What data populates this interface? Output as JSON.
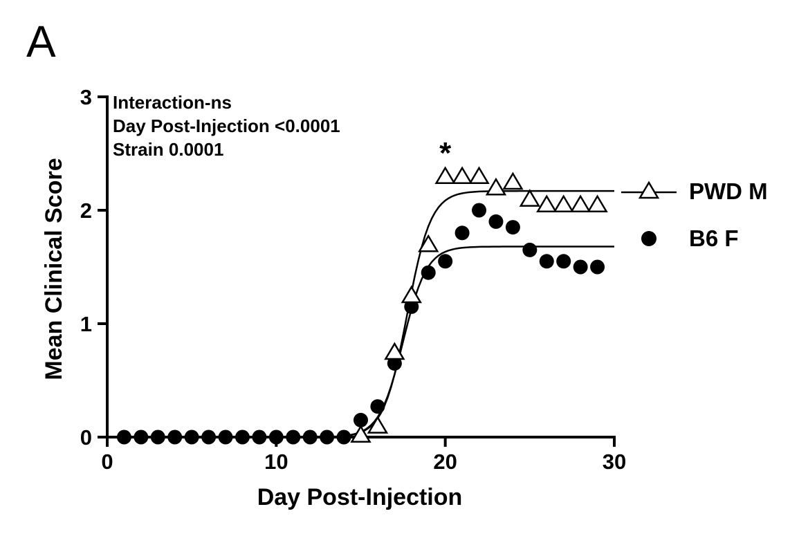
{
  "panel_label": "A",
  "stats": {
    "line1": "Interaction-ns",
    "line2": "Day Post-Injection <0.0001",
    "line3": "Strain 0.0001"
  },
  "legend": {
    "entries": [
      {
        "label": "PWD M",
        "marker": "open-triangle"
      },
      {
        "label": "B6 F",
        "marker": "filled-circle"
      }
    ],
    "position": "right"
  },
  "colors": {
    "foreground": "#000000",
    "background": "#ffffff"
  },
  "chart_data": {
    "type": "scatter",
    "title": "",
    "xlabel": "Day Post-Injection",
    "ylabel": "Mean Clinical Score",
    "xlim": [
      0,
      30
    ],
    "ylim": [
      0,
      3
    ],
    "xticks": [
      0,
      10,
      20,
      30
    ],
    "yticks": [
      0,
      1,
      2,
      3
    ],
    "grid": false,
    "legend_position": "right",
    "series": [
      {
        "name": "B6 F",
        "marker": "filled-circle",
        "x": [
          1,
          2,
          3,
          4,
          5,
          6,
          7,
          8,
          9,
          10,
          11,
          12,
          13,
          14,
          15,
          16,
          17,
          18,
          19,
          20,
          21,
          22,
          23,
          24,
          25,
          26,
          27,
          28,
          29
        ],
        "values": [
          0,
          0,
          0,
          0,
          0,
          0,
          0,
          0,
          0,
          0,
          0,
          0,
          0,
          0,
          0.15,
          0.27,
          0.65,
          1.15,
          1.45,
          1.55,
          1.8,
          2.0,
          1.9,
          1.85,
          1.65,
          1.55,
          1.55,
          1.5,
          1.5
        ],
        "fit": {
          "type": "logistic",
          "top": 1.68,
          "x0": 17.5,
          "b": 0.7
        }
      },
      {
        "name": "PWD M",
        "marker": "open-triangle",
        "x": [
          15,
          16,
          17,
          18,
          19,
          20,
          21,
          22,
          23,
          24,
          25,
          26,
          27,
          28,
          29
        ],
        "values": [
          0.02,
          0.1,
          0.75,
          1.25,
          1.7,
          2.3,
          2.3,
          2.3,
          2.2,
          2.25,
          2.1,
          2.05,
          2.05,
          2.05,
          2.05
        ],
        "fit": {
          "type": "logistic",
          "top": 2.17,
          "x0": 17.75,
          "b": 0.7
        }
      }
    ],
    "annotations": [
      {
        "text": "*",
        "x": 20,
        "y": 2.55
      }
    ]
  }
}
